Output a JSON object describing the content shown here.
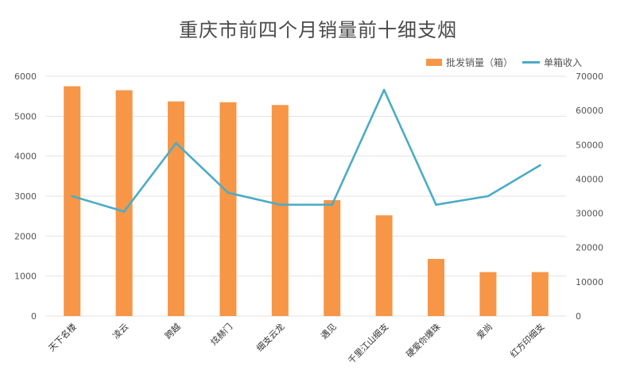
{
  "chart_data": {
    "type": "bar",
    "title": "重庆市前四个月销量前十细支烟",
    "categories": [
      "天下名楼",
      "凌云",
      "跨越",
      "炫赫门",
      "细支云龙",
      "遇见",
      "千里江山细支",
      "硬爱你爆珠",
      "爱尚",
      "红方印细支"
    ],
    "series": [
      {
        "name": "批发销量（箱）",
        "type": "bar",
        "axis": "left",
        "color": "#f79646",
        "values": [
          5750,
          5650,
          5370,
          5350,
          5280,
          2900,
          2520,
          1430,
          1100,
          1100
        ]
      },
      {
        "name": "单箱收入",
        "type": "line",
        "axis": "right",
        "color": "#4bacc6",
        "values": [
          35000,
          30500,
          50500,
          36000,
          32500,
          32500,
          66000,
          32500,
          35000,
          44000
        ]
      }
    ],
    "y_left": {
      "min": 0,
      "max": 6000,
      "ticks": [
        "0",
        "1000",
        "2000",
        "3000",
        "4000",
        "5000",
        "6000"
      ]
    },
    "y_right": {
      "min": 0,
      "max": 70000,
      "ticks": [
        "0",
        "10000",
        "20000",
        "30000",
        "40000",
        "50000",
        "60000",
        "70000"
      ]
    },
    "grid": true,
    "legend_position": "top-right"
  }
}
